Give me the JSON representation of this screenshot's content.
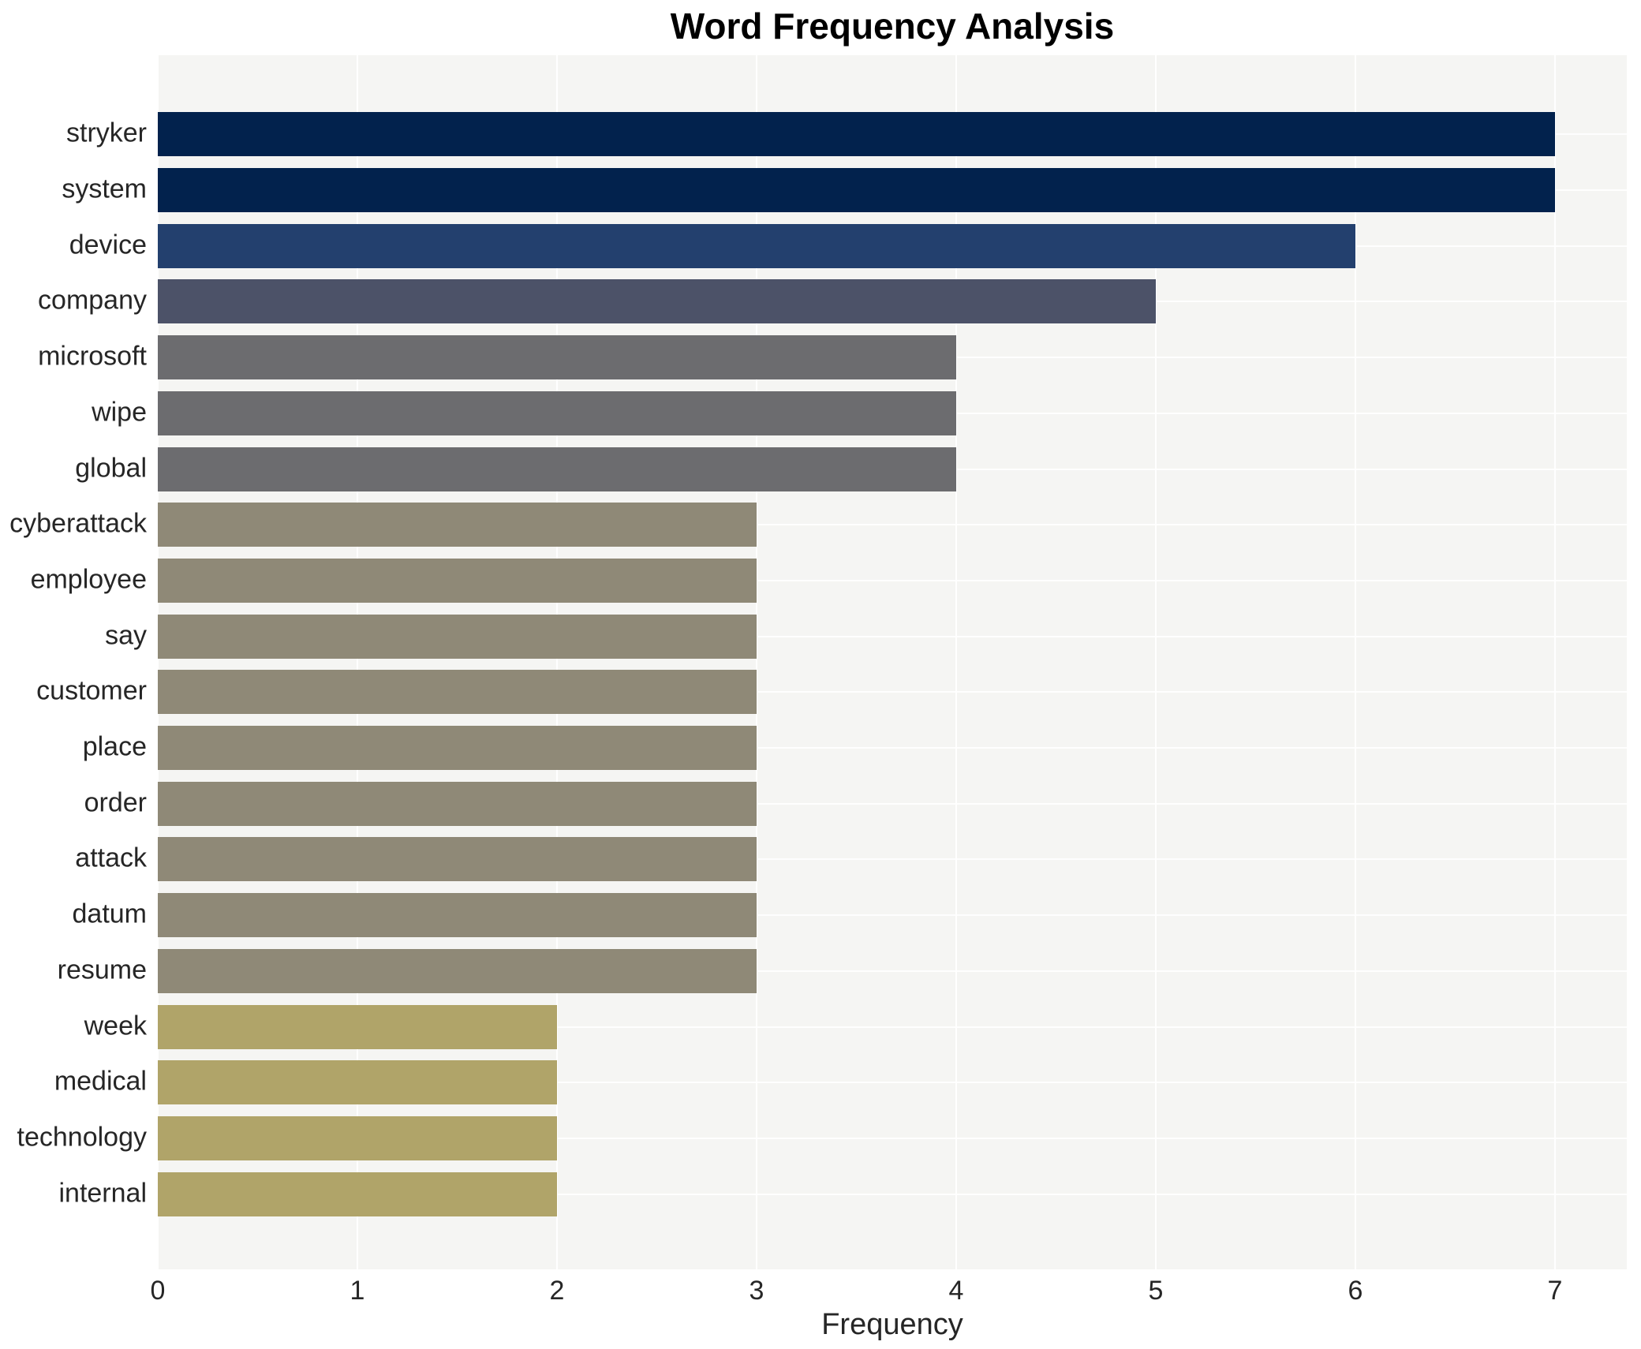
{
  "title": "Word Frequency Analysis",
  "chart_data": {
    "type": "bar",
    "orientation": "horizontal",
    "title": "Word Frequency Analysis",
    "xlabel": "Frequency",
    "ylabel": "",
    "categories": [
      "stryker",
      "system",
      "device",
      "company",
      "microsoft",
      "wipe",
      "global",
      "cyberattack",
      "employee",
      "say",
      "customer",
      "place",
      "order",
      "attack",
      "datum",
      "resume",
      "week",
      "medical",
      "technology",
      "internal"
    ],
    "values": [
      7,
      7,
      6,
      5,
      4,
      4,
      4,
      3,
      3,
      3,
      3,
      3,
      3,
      3,
      3,
      3,
      2,
      2,
      2,
      2
    ],
    "x_ticks": [
      0,
      1,
      2,
      3,
      4,
      5,
      6,
      7
    ],
    "xlim": [
      0,
      7.36
    ],
    "grid": true,
    "legend": false,
    "plot_background": "#f5f5f3",
    "grid_color": "#ffffff",
    "colors_by_value": {
      "7": "#02224d",
      "6": "#23406e",
      "5": "#4c5268",
      "4": "#6c6c6f",
      "3": "#8f8977",
      "2": "#b0a469"
    }
  }
}
